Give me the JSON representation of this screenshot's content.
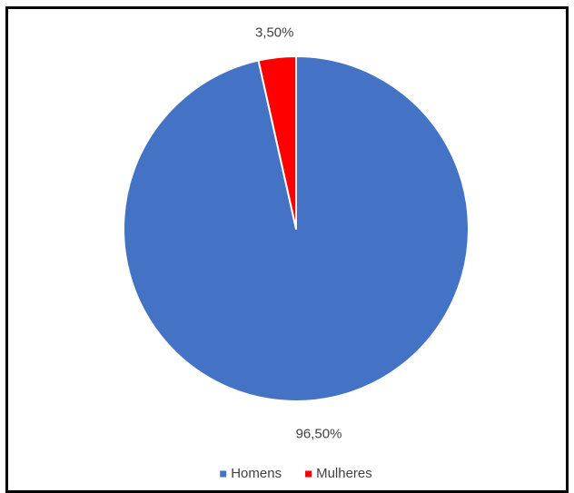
{
  "chart_data": {
    "type": "pie",
    "title": "",
    "categories": [
      "Homens",
      "Mulheres"
    ],
    "values": [
      96.5,
      3.5
    ],
    "data_labels": [
      "96,50%",
      "3,50%"
    ],
    "colors": [
      "#4472C4",
      "#FF0000"
    ],
    "legend": {
      "placement": "bottom",
      "entries": [
        "Homens",
        "Mulheres"
      ]
    },
    "start_angle_deg": 0,
    "direction": "clockwise"
  }
}
